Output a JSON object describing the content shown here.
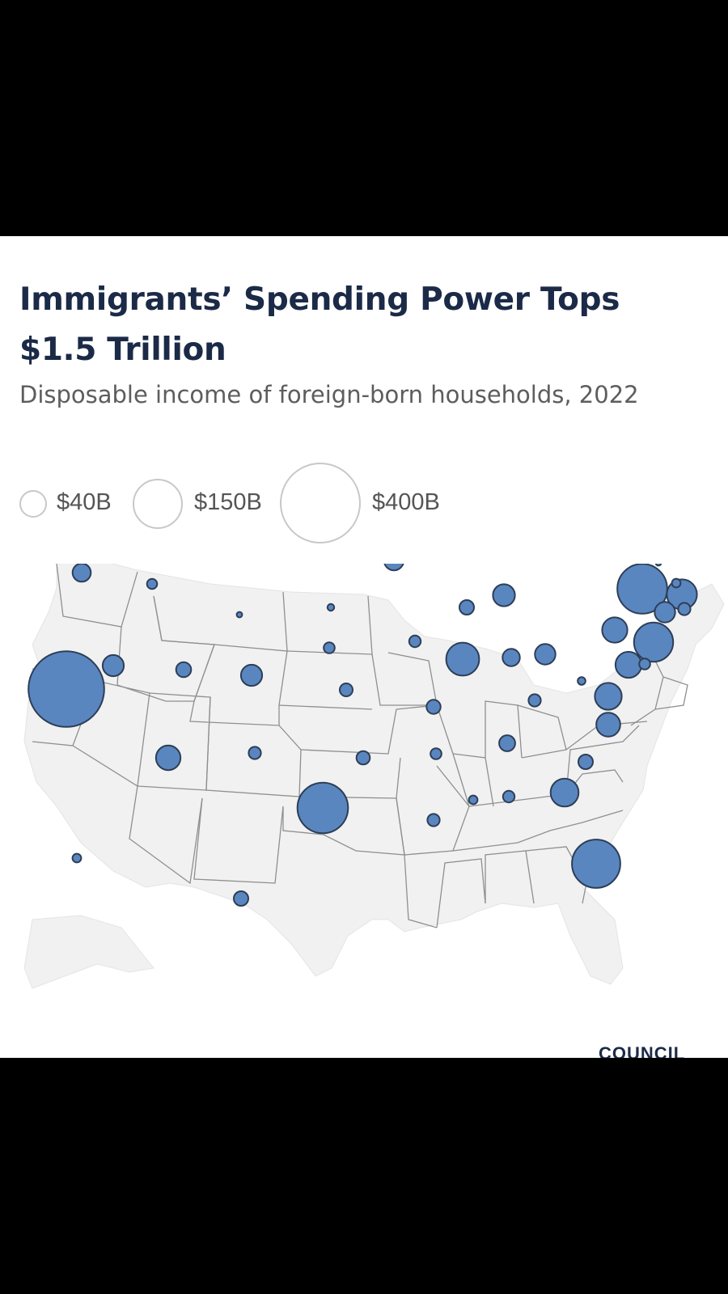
{
  "header": {
    "title": "Immigrants’ Spending Power Tops $1.5 Trillion",
    "subtitle": "Disposable income of foreign-born households, 2022"
  },
  "legend": {
    "items": [
      {
        "label": "$40B",
        "value_billions": 40
      },
      {
        "label": "$150B",
        "value_billions": 150
      },
      {
        "label": "$400B",
        "value_billions": 400
      }
    ],
    "circle_stroke": "#c8c8c8"
  },
  "map": {
    "type": "proportional-symbol",
    "region": "United States",
    "bubble_color": "#5a86c0",
    "bubble_stroke": "#2d3e57",
    "land_color": "#f1f1f1",
    "state_border_color": "#8f8f8f",
    "states": [
      {
        "state": "CA",
        "value_billions": 380
      },
      {
        "state": "TX",
        "value_billions": 170
      },
      {
        "state": "FL",
        "value_billions": 155
      },
      {
        "state": "NY",
        "value_billions": 165
      },
      {
        "state": "NJ",
        "value_billions": 102
      },
      {
        "state": "IL",
        "value_billions": 72
      },
      {
        "state": "MA",
        "value_billions": 60
      },
      {
        "state": "WA",
        "value_billions": 58
      },
      {
        "state": "GA",
        "value_billions": 52
      },
      {
        "state": "VA",
        "value_billions": 48
      },
      {
        "state": "MD",
        "value_billions": 45
      },
      {
        "state": "AZ",
        "value_billions": 40
      },
      {
        "state": "PA",
        "value_billions": 42
      },
      {
        "state": "NC",
        "value_billions": 38
      },
      {
        "state": "CT",
        "value_billions": 28
      },
      {
        "state": "MI",
        "value_billions": 32
      },
      {
        "state": "NV",
        "value_billions": 30
      },
      {
        "state": "CO",
        "value_billions": 30
      },
      {
        "state": "MN",
        "value_billions": 26
      },
      {
        "state": "OH",
        "value_billions": 28
      },
      {
        "state": "OR",
        "value_billions": 22
      },
      {
        "state": "IN",
        "value_billions": 20
      },
      {
        "state": "UT",
        "value_billions": 15
      },
      {
        "state": "TN",
        "value_billions": 17
      },
      {
        "state": "HI",
        "value_billions": 14
      },
      {
        "state": "SC",
        "value_billions": 14
      },
      {
        "state": "WI",
        "value_billions": 14
      },
      {
        "state": "MO",
        "value_billions": 13
      },
      {
        "state": "OK",
        "value_billions": 12
      },
      {
        "state": "KS",
        "value_billions": 11
      },
      {
        "state": "RI",
        "value_billions": 10
      },
      {
        "state": "NM",
        "value_billions": 10
      },
      {
        "state": "AL",
        "value_billions": 9
      },
      {
        "state": "IA",
        "value_billions": 9
      },
      {
        "state": "NE",
        "value_billions": 8
      },
      {
        "state": "KY",
        "value_billions": 10
      },
      {
        "state": "LA",
        "value_billions": 10
      },
      {
        "state": "AR",
        "value_billions": 8
      },
      {
        "state": "ID",
        "value_billions": 7
      },
      {
        "state": "DE",
        "value_billions": 8
      },
      {
        "state": "NH",
        "value_billions": 5
      },
      {
        "state": "MS",
        "value_billions": 5
      },
      {
        "state": "ME",
        "value_billions": 4
      },
      {
        "state": "AK",
        "value_billions": 5
      },
      {
        "state": "WV",
        "value_billions": 4
      },
      {
        "state": "MT",
        "value_billions": 3
      },
      {
        "state": "ND",
        "value_billions": 3
      },
      {
        "state": "SD",
        "value_billions": 3
      },
      {
        "state": "WY",
        "value_billions": 2
      },
      {
        "state": "VT",
        "value_billions": 2
      }
    ]
  },
  "footer": {
    "logo_text": "COUNCIL"
  }
}
